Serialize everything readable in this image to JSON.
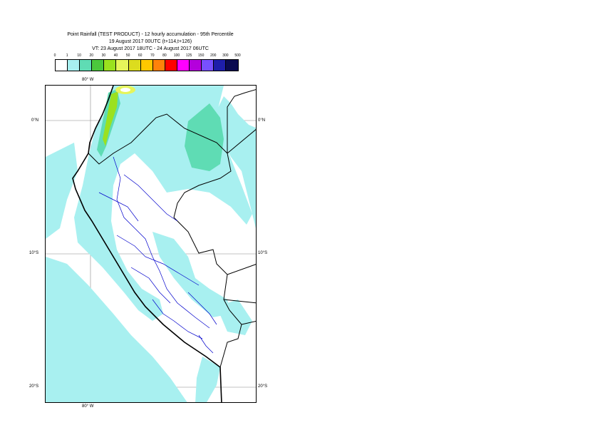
{
  "title": {
    "line1": "Point Rainfall (TEST PRODUCT) - 12 hourly accumulation - 95th Percentile",
    "line2": "19 August 2017 00UTC (t+114,t+126)",
    "line3": "VT: 23 August 2017 18UTC - 24 August 2017 06UTC"
  },
  "legend": {
    "thresholds": [
      "0",
      "1",
      "10",
      "20",
      "30",
      "40",
      "50",
      "60",
      "70",
      "80",
      "100",
      "125",
      "150",
      "200",
      "300",
      "500"
    ],
    "colors": [
      "#ffffff",
      "#a8f0f0",
      "#5fdcb4",
      "#4bc83c",
      "#9be11e",
      "#e6f55a",
      "#dcdc1e",
      "#ffc800",
      "#ff820a",
      "#ff0000",
      "#ff00ff",
      "#b400dc",
      "#7850ff",
      "#1e1eaa",
      "#0a0a50"
    ]
  },
  "map": {
    "lon_labels": [
      "80° W",
      "80° W"
    ],
    "lat_labels_left": [
      "0°N",
      "10°S",
      "20°S"
    ],
    "lat_labels_right": [
      "0°N",
      "10°S",
      "20°S"
    ],
    "rain_fill": "#a8f0f0",
    "heavy_fill": "#5fdcb4",
    "coast_color": "#000000",
    "border_color": "#000000",
    "admin_color": "#0000cc"
  }
}
